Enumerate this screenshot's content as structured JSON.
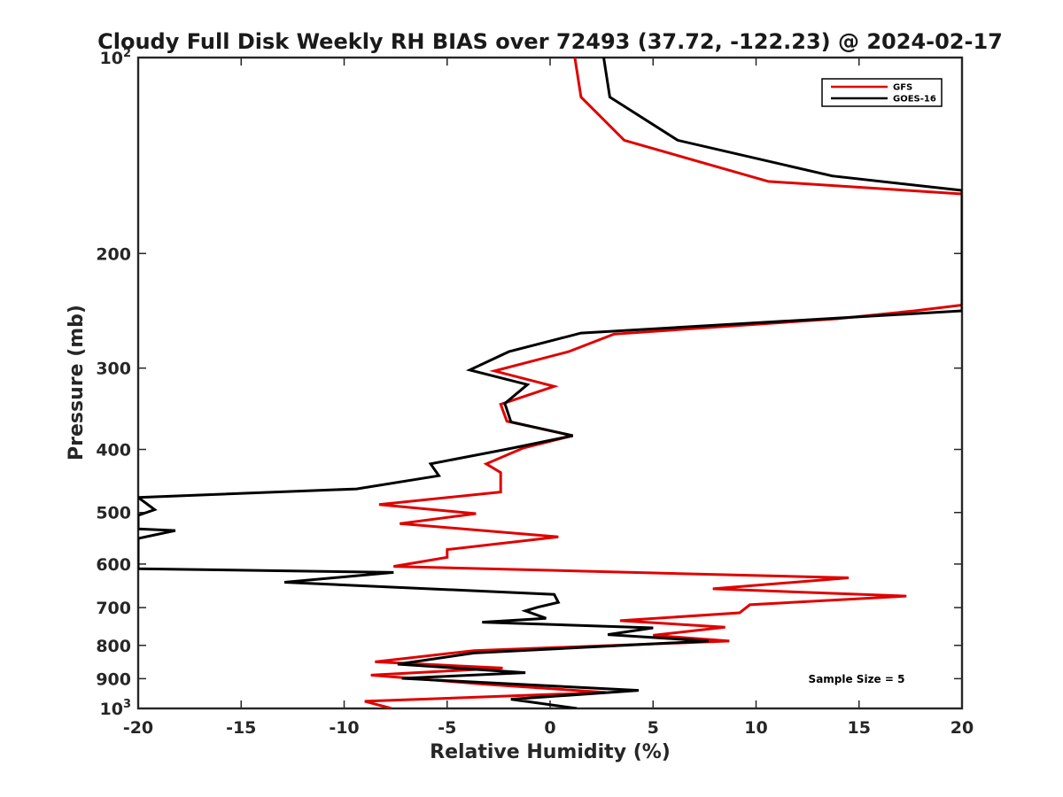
{
  "chart_data": {
    "type": "line",
    "title": "Cloudy Full Disk Weekly RH BIAS over 72493 (37.72, -122.23) @ 2024-02-17",
    "xlabel": "Relative Humidity (%)",
    "ylabel": "Pressure (mb)",
    "xlim": [
      -20,
      20
    ],
    "ylim": [
      100,
      1000
    ],
    "yscale": "log",
    "y_reversed": true,
    "grid": false,
    "legend_position": "top-right",
    "x_ticks": [
      -20,
      -15,
      -10,
      -5,
      0,
      5,
      10,
      15,
      20
    ],
    "x_tick_labels": [
      "-20",
      "-15",
      "-10",
      "-5",
      "0",
      "5",
      "10",
      "15",
      "20"
    ],
    "y_ticks": [
      100,
      200,
      300,
      400,
      500,
      600,
      700,
      800,
      900,
      1000
    ],
    "y_tick_labels": [
      {
        "base": "10",
        "sup": "2"
      },
      {
        "base": "200",
        "sup": ""
      },
      {
        "base": "300",
        "sup": ""
      },
      {
        "base": "400",
        "sup": ""
      },
      {
        "base": "500",
        "sup": ""
      },
      {
        "base": "600",
        "sup": ""
      },
      {
        "base": "700",
        "sup": ""
      },
      {
        "base": "800",
        "sup": ""
      },
      {
        "base": "900",
        "sup": ""
      },
      {
        "base": "10",
        "sup": "3"
      }
    ],
    "annotation": "Sample Size = 5",
    "series": [
      {
        "name": "GFS",
        "color": "#e00000",
        "points": [
          [
            1.2,
            100
          ],
          [
            1.5,
            115
          ],
          [
            3.6,
            134
          ],
          [
            10.6,
            155
          ],
          [
            20,
            162
          ],
          [
            20,
            240
          ],
          [
            17.7,
            245
          ],
          [
            13.9,
            252
          ],
          [
            3.1,
            266
          ],
          [
            0.9,
            283
          ],
          [
            -2.7,
            303
          ],
          [
            0.2,
            320
          ],
          [
            -2.4,
            341
          ],
          [
            -2.1,
            362
          ],
          [
            1.1,
            381
          ],
          [
            -1.3,
            398
          ],
          [
            -3.1,
            421
          ],
          [
            -2.4,
            434
          ],
          [
            -2.4,
            465
          ],
          [
            -8.3,
            486
          ],
          [
            -3.6,
            502
          ],
          [
            -7.3,
            520
          ],
          [
            0.4,
            545
          ],
          [
            -5.0,
            570
          ],
          [
            -5.0,
            586
          ],
          [
            -7.6,
            605
          ],
          [
            14.5,
            630
          ],
          [
            7.9,
            655
          ],
          [
            17.3,
            672
          ],
          [
            9.7,
            693
          ],
          [
            9.2,
            713
          ],
          [
            3.4,
            733
          ],
          [
            8.5,
            750
          ],
          [
            5.0,
            772
          ],
          [
            8.7,
            788
          ],
          [
            -3.7,
            815
          ],
          [
            -8.5,
            848
          ],
          [
            -2.3,
            867
          ],
          [
            -8.7,
            889
          ],
          [
            -3.1,
            918
          ],
          [
            2.7,
            945
          ],
          [
            -9.0,
            975
          ],
          [
            -7.7,
            1000
          ]
        ]
      },
      {
        "name": "GOES-16",
        "color": "#000000",
        "points": [
          [
            2.6,
            100
          ],
          [
            2.9,
            115
          ],
          [
            6.2,
            134
          ],
          [
            13.7,
            152
          ],
          [
            20,
            160
          ],
          [
            20,
            245
          ],
          [
            1.5,
            265
          ],
          [
            -2.0,
            283
          ],
          [
            -3.9,
            302
          ],
          [
            -1.1,
            318
          ],
          [
            -2.2,
            340
          ],
          [
            -1.9,
            363
          ],
          [
            1.1,
            381
          ],
          [
            -1.8,
            398
          ],
          [
            -5.8,
            421
          ],
          [
            -5.4,
            439
          ],
          [
            -9.4,
            460
          ],
          [
            -20,
            474
          ],
          [
            -19.2,
            495
          ],
          [
            -20,
            505
          ],
          [
            -20,
            530
          ],
          [
            -18.2,
            533
          ],
          [
            -20,
            548
          ],
          [
            -20,
            610
          ],
          [
            -7.6,
            618
          ],
          [
            -12.9,
            640
          ],
          [
            0.2,
            668
          ],
          [
            0.4,
            687
          ],
          [
            -0.6,
            699
          ],
          [
            -1.2,
            708
          ],
          [
            -0.2,
            727
          ],
          [
            -3.3,
            737
          ],
          [
            5.0,
            752
          ],
          [
            2.8,
            770
          ],
          [
            7.7,
            788
          ],
          [
            -3.7,
            822
          ],
          [
            -7.4,
            855
          ],
          [
            -1.2,
            881
          ],
          [
            -7.2,
            899
          ],
          [
            4.3,
            938
          ],
          [
            -1.9,
            968
          ],
          [
            1.3,
            1000
          ]
        ]
      }
    ]
  }
}
